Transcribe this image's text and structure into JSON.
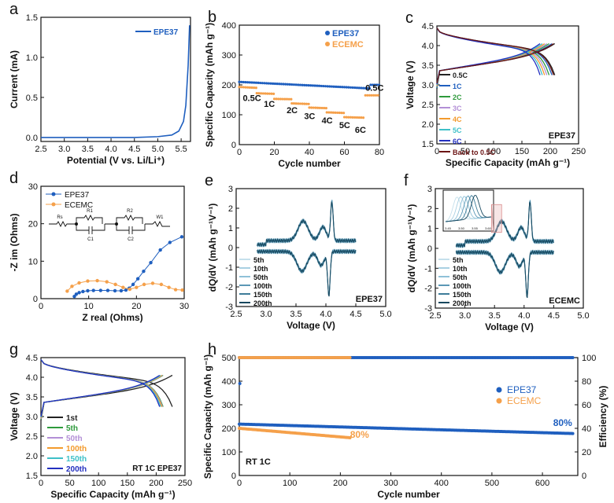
{
  "colors": {
    "blue": "#1f5fbf",
    "orange": "#f5a04a",
    "navy": "#17485f",
    "light": "#8fc1d8",
    "mid": "#3d7c99"
  },
  "chart_data": [
    {
      "panel": "a",
      "type": "line",
      "xlabel": "Potential (V vs. Li/Li⁺)",
      "ylabel": "Current (mA)",
      "xlim": [
        2.5,
        5.7
      ],
      "ylim": [
        -0.05,
        1.5
      ],
      "xticks": [
        2.5,
        3.0,
        3.5,
        4.0,
        4.5,
        5.0,
        5.5
      ],
      "yticks": [
        0.0,
        0.5,
        1.0,
        1.5
      ],
      "series": [
        {
          "name": "EPE37",
          "color": "#1f5fbf",
          "x": [
            2.5,
            3.0,
            3.5,
            4.0,
            4.5,
            5.0,
            5.3,
            5.45,
            5.55,
            5.6,
            5.65,
            5.68
          ],
          "y": [
            0.0,
            0.0,
            0.0,
            0.0,
            0.0,
            0.01,
            0.03,
            0.08,
            0.2,
            0.4,
            0.9,
            1.4
          ]
        }
      ]
    },
    {
      "panel": "b",
      "type": "scatter",
      "xlabel": "Cycle number",
      "ylabel": "Specific Capacity (mAh g⁻¹)",
      "xlim": [
        0,
        80
      ],
      "ylim": [
        0,
        400
      ],
      "xticks": [
        0,
        20,
        40,
        60,
        80
      ],
      "yticks": [
        0,
        100,
        200,
        300,
        400
      ],
      "series": [
        {
          "name": "EPE37",
          "color": "#1f5fbf",
          "segments": [
            [
              0,
              75,
              210,
              188
            ],
            [
              75,
              80,
              200,
              200
            ]
          ]
        },
        {
          "name": "ECEMC",
          "color": "#f5a04a",
          "segments": [
            [
              0,
              10,
              193,
              190
            ],
            [
              10,
              20,
              172,
              170
            ],
            [
              20,
              30,
              153,
              152
            ],
            [
              30,
              40,
              138,
              136
            ],
            [
              40,
              50,
              124,
              122
            ],
            [
              50,
              60,
              108,
              106
            ],
            [
              60,
              72,
              92,
              90
            ],
            [
              72,
              80,
              165,
              165
            ]
          ]
        }
      ],
      "annotations": [
        "0.5C",
        "1C",
        "2C",
        "3C",
        "4C",
        "5C",
        "6C",
        "0.5C"
      ]
    },
    {
      "panel": "c",
      "type": "line",
      "xlabel": "Specific Capacity (mAh g⁻¹)",
      "ylabel": "Voltage (V)",
      "xlim": [
        0,
        250
      ],
      "ylim": [
        1.5,
        4.5
      ],
      "xticks": [
        0,
        50,
        100,
        150,
        200,
        250
      ],
      "yticks": [
        1.5,
        2.0,
        2.5,
        3.0,
        3.5,
        4.0,
        4.5
      ],
      "tag": "EPE37",
      "series": [
        {
          "name": "0.5C",
          "color": "#222222",
          "cap": 208
        },
        {
          "name": "1C",
          "color": "#1f5fbf",
          "cap": 203
        },
        {
          "name": "2C",
          "color": "#2e9a3c",
          "cap": 198
        },
        {
          "name": "3C",
          "color": "#b38fd6",
          "cap": 194
        },
        {
          "name": "4C",
          "color": "#f39a2c",
          "cap": 190
        },
        {
          "name": "5C",
          "color": "#3ec0c8",
          "cap": 186
        },
        {
          "name": "6C",
          "color": "#2330c0",
          "cap": 182
        },
        {
          "name": "Back to 0.5C",
          "color": "#6b1414",
          "cap": 206
        }
      ]
    },
    {
      "panel": "d",
      "type": "scatter",
      "xlabel": "Z real (Ohms)",
      "ylabel": "-Z im (Ohms)",
      "xlim": [
        0,
        30
      ],
      "ylim": [
        0,
        30
      ],
      "xticks": [
        0,
        10,
        20,
        30
      ],
      "yticks": [
        0,
        10,
        20,
        30
      ],
      "circuit": [
        "Rs",
        "R1",
        "C1",
        "R2",
        "C2",
        "W1"
      ],
      "series": [
        {
          "name": "EPE37",
          "color": "#1f5fbf",
          "x": [
            7.0,
            7.4,
            8.0,
            8.8,
            9.8,
            11.0,
            12.5,
            14.0,
            15.5,
            16.8,
            17.8,
            18.5,
            19.3,
            20.3,
            21.5,
            23.0,
            25.0,
            27.0,
            29.5
          ],
          "y": [
            0.6,
            1.2,
            1.6,
            1.9,
            2.1,
            2.2,
            2.2,
            2.2,
            2.1,
            2.1,
            2.3,
            2.8,
            3.8,
            5.3,
            7.3,
            9.6,
            13.0,
            15.0,
            16.5
          ]
        },
        {
          "name": "ECEMC",
          "color": "#f5a04a",
          "x": [
            5.5,
            6.5,
            8.0,
            9.8,
            11.8,
            13.8,
            15.6,
            17.2,
            18.6,
            20.0,
            21.6,
            23.4,
            25.2,
            26.8,
            28.2,
            29.6
          ],
          "y": [
            2.0,
            3.3,
            4.2,
            4.7,
            4.8,
            4.5,
            3.8,
            3.0,
            2.5,
            3.0,
            3.8,
            4.1,
            3.8,
            3.0,
            2.4,
            2.3
          ]
        }
      ]
    },
    {
      "panel": "e",
      "type": "line",
      "xlabel": "Voltage (V)",
      "ylabel": "dQ/dV (mAh g⁻¹V⁻¹)",
      "xlim": [
        2.5,
        5.0
      ],
      "ylim": [
        -3,
        3
      ],
      "xticks": [
        2.5,
        3.0,
        3.5,
        4.0,
        4.5,
        5.0
      ],
      "yticks": [
        -3,
        -2,
        -1,
        0,
        1,
        2,
        3
      ],
      "tag": "EPE37",
      "series": [
        {
          "name": "5th",
          "color": "#c5e0ec"
        },
        {
          "name": "10th",
          "color": "#a9d0e2"
        },
        {
          "name": "50th",
          "color": "#8fc1d8"
        },
        {
          "name": "100th",
          "color": "#5b98b6"
        },
        {
          "name": "150th",
          "color": "#3d7c99"
        },
        {
          "name": "200th",
          "color": "#17485f"
        }
      ]
    },
    {
      "panel": "f",
      "type": "line",
      "xlabel": "Voltage (V)",
      "ylabel": "dQ/dV (mAh g⁻¹V⁻¹)",
      "xlim": [
        2.5,
        5.0
      ],
      "ylim": [
        -3,
        3
      ],
      "xticks": [
        2.5,
        3.0,
        3.5,
        4.0,
        4.5,
        5.0
      ],
      "yticks": [
        -3,
        -2,
        -1,
        0,
        1,
        2,
        3
      ],
      "tag": "ECEMC",
      "inset_ticks": [
        "3.45",
        "3.50",
        "3.55",
        "3.60"
      ],
      "series": [
        {
          "name": "5th",
          "color": "#c5e0ec"
        },
        {
          "name": "10th",
          "color": "#a9d0e2"
        },
        {
          "name": "50th",
          "color": "#8fc1d8"
        },
        {
          "name": "100th",
          "color": "#5b98b6"
        },
        {
          "name": "150th",
          "color": "#3d7c99"
        },
        {
          "name": "200th",
          "color": "#17485f"
        }
      ]
    },
    {
      "panel": "g",
      "type": "line",
      "xlabel": "Specific Capacity (mAh g⁻¹)",
      "ylabel": "Voltage (V)",
      "xlim": [
        0,
        250
      ],
      "ylim": [
        1.5,
        4.5
      ],
      "xticks": [
        0,
        50,
        100,
        150,
        200,
        250
      ],
      "yticks": [
        1.5,
        2.0,
        2.5,
        3.0,
        3.5,
        4.0,
        4.5
      ],
      "tag": "RT 1C  EPE37",
      "series": [
        {
          "name": "1st",
          "color": "#222222",
          "cap": 228
        },
        {
          "name": "5th",
          "color": "#2e9a3c",
          "cap": 212
        },
        {
          "name": "50th",
          "color": "#b38fd6",
          "cap": 211
        },
        {
          "name": "100th",
          "color": "#f39a2c",
          "cap": 210
        },
        {
          "name": "150th",
          "color": "#3ec0c8",
          "cap": 208
        },
        {
          "name": "200th",
          "color": "#2330c0",
          "cap": 206
        }
      ]
    },
    {
      "panel": "h",
      "type": "scatter",
      "xlabel": "Cycle number",
      "ylabel": "Specific Capacity (mAh g⁻¹)",
      "y2label": "Efficiency (%)",
      "xlim": [
        0,
        670
      ],
      "ylim": [
        0,
        500
      ],
      "y2lim": [
        0,
        100
      ],
      "xticks": [
        0,
        100,
        200,
        300,
        400,
        500,
        600
      ],
      "yticks": [
        0,
        100,
        200,
        300,
        400,
        500
      ],
      "y2ticks": [
        0,
        20,
        40,
        60,
        80,
        100
      ],
      "tag": "RT 1C",
      "series": [
        {
          "name": "EPE37",
          "color": "#1f5fbf",
          "capacity": {
            "x": [
              0,
              660
            ],
            "y": [
              218,
              178
            ]
          },
          "efficiency": {
            "x": [
              0,
              660
            ],
            "y": [
              100,
              100
            ]
          },
          "retention": "80%"
        },
        {
          "name": "ECEMC",
          "color": "#f5a04a",
          "capacity": {
            "x": [
              0,
              220
            ],
            "y": [
              200,
              160
            ]
          },
          "efficiency": {
            "x": [
              0,
              220
            ],
            "y": [
              100,
              100
            ]
          },
          "retention": "80%"
        }
      ]
    }
  ]
}
